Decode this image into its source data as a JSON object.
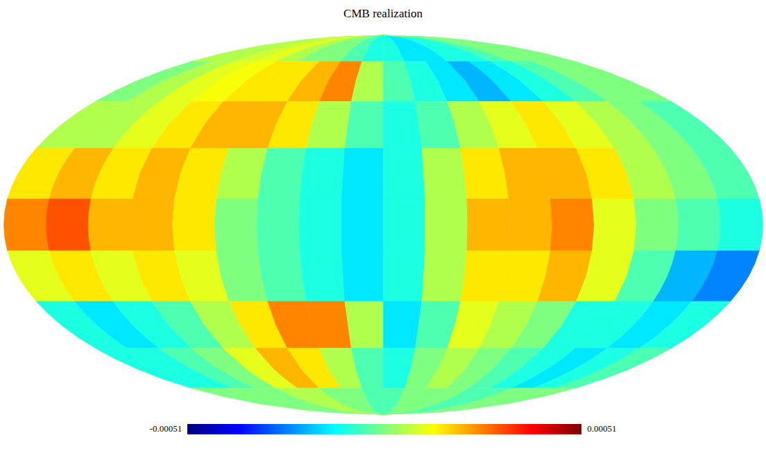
{
  "chart_data": {
    "type": "heatmap",
    "title": "CMB realization",
    "lon": [
      -170,
      -150,
      -130,
      -110,
      -90,
      -70,
      -50,
      -30,
      -10,
      10,
      30,
      50,
      70,
      90,
      110,
      130,
      150,
      170
    ],
    "lat": [
      80,
      60,
      40,
      20,
      0,
      -20,
      -40,
      -60,
      -80
    ],
    "cells": [
      [
        5e-05,
        5e-05,
        8e-05,
        0.0001,
        5e-05,
        0,
        0,
        -5e-05,
        -0.0001,
        -0.0001,
        -0.00015,
        -0.00015,
        -0.0001,
        -0.0001,
        -5e-05,
        0,
        0,
        0
      ],
      [
        0,
        5e-05,
        0.0001,
        0.00012,
        0.00015,
        0.00015,
        0.0002,
        0.00025,
        5e-05,
        -5e-05,
        -0.0001,
        -0.00015,
        -0.0002,
        -0.00015,
        -0.0001,
        -5e-05,
        0,
        0
      ],
      [
        5e-05,
        5e-05,
        0.0001,
        0.00015,
        0.0002,
        0.0002,
        0.00015,
        5e-05,
        -5e-05,
        -0.0001,
        -5e-05,
        5e-05,
        0.0001,
        0.00015,
        0.0001,
        5e-05,
        0,
        -5e-05
      ],
      [
        0.00015,
        0.0002,
        0.00015,
        0.0002,
        0.00015,
        5e-05,
        -5e-05,
        -0.0001,
        -0.00015,
        -0.0001,
        5e-05,
        0.00015,
        0.0002,
        0.0002,
        0.00015,
        5e-05,
        0,
        -5e-05
      ],
      [
        0.00025,
        0.0003,
        0.0002,
        0.0002,
        0.00015,
        0,
        -5e-05,
        -0.0001,
        -0.00015,
        -0.0001,
        5e-05,
        0.0002,
        0.0002,
        0.00025,
        0.0001,
        0,
        -5e-05,
        -0.0001
      ],
      [
        0.0001,
        0.00015,
        0.0001,
        0.00015,
        0.0001,
        0,
        -5e-05,
        -0.0001,
        -0.00015,
        -0.0001,
        5e-05,
        0.00015,
        0.00015,
        0.0002,
        0.0001,
        -5e-05,
        -0.0002,
        -0.00025
      ],
      [
        -0.0001,
        -0.00015,
        -0.0001,
        -5e-05,
        5e-05,
        0.00015,
        0.00025,
        0.00025,
        5e-05,
        -0.00015,
        -5e-05,
        0.0001,
        5e-05,
        0,
        -0.0001,
        -0.0001,
        -0.00015,
        -0.0001
      ],
      [
        -0.0001,
        -0.0001,
        -5e-05,
        0,
        0.0001,
        0.0002,
        0.00015,
        5e-05,
        -5e-05,
        -0.0001,
        0,
        5e-05,
        0,
        -5e-05,
        -0.0001,
        -0.00015,
        -0.0001,
        -5e-05
      ],
      [
        0,
        0,
        0,
        0,
        5e-05,
        5e-05,
        0,
        0,
        -5e-05,
        -5e-05,
        0,
        0,
        0,
        -5e-05,
        -5e-05,
        0,
        0,
        0
      ]
    ],
    "colorbar": {
      "range": [
        -0.00051,
        0.00051
      ],
      "ticks": [
        -0.00051,
        0.00051
      ]
    }
  }
}
